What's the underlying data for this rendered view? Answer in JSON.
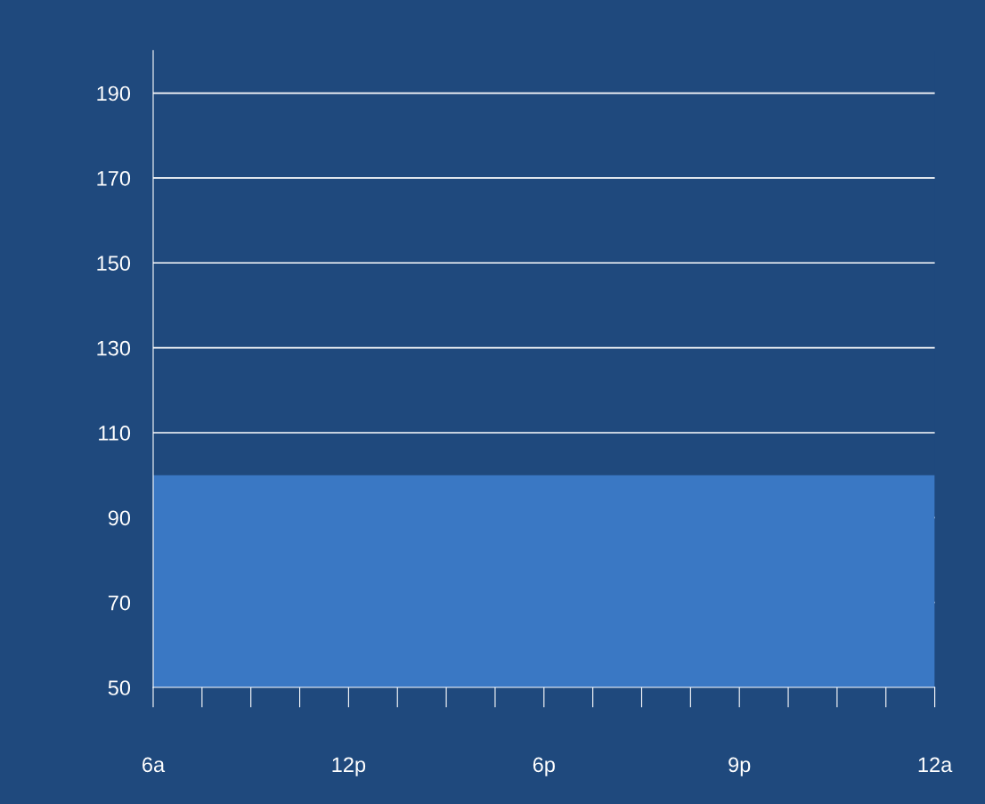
{
  "chart_data": {
    "type": "area",
    "categories": [
      "6a",
      null,
      null,
      null,
      "12p",
      null,
      null,
      null,
      "6p",
      null,
      null,
      null,
      "9p",
      null,
      null,
      null,
      "12a"
    ],
    "series": [
      {
        "color": "#3a78c4",
        "values": [
          100,
          100,
          100,
          100,
          100,
          100,
          100,
          100,
          100,
          100,
          100,
          100,
          100,
          100,
          100,
          100,
          100
        ]
      }
    ],
    "ylim": [
      50,
      200
    ],
    "yticks": [
      50,
      70,
      90,
      110,
      130,
      150,
      170,
      190
    ],
    "grid": "y"
  }
}
